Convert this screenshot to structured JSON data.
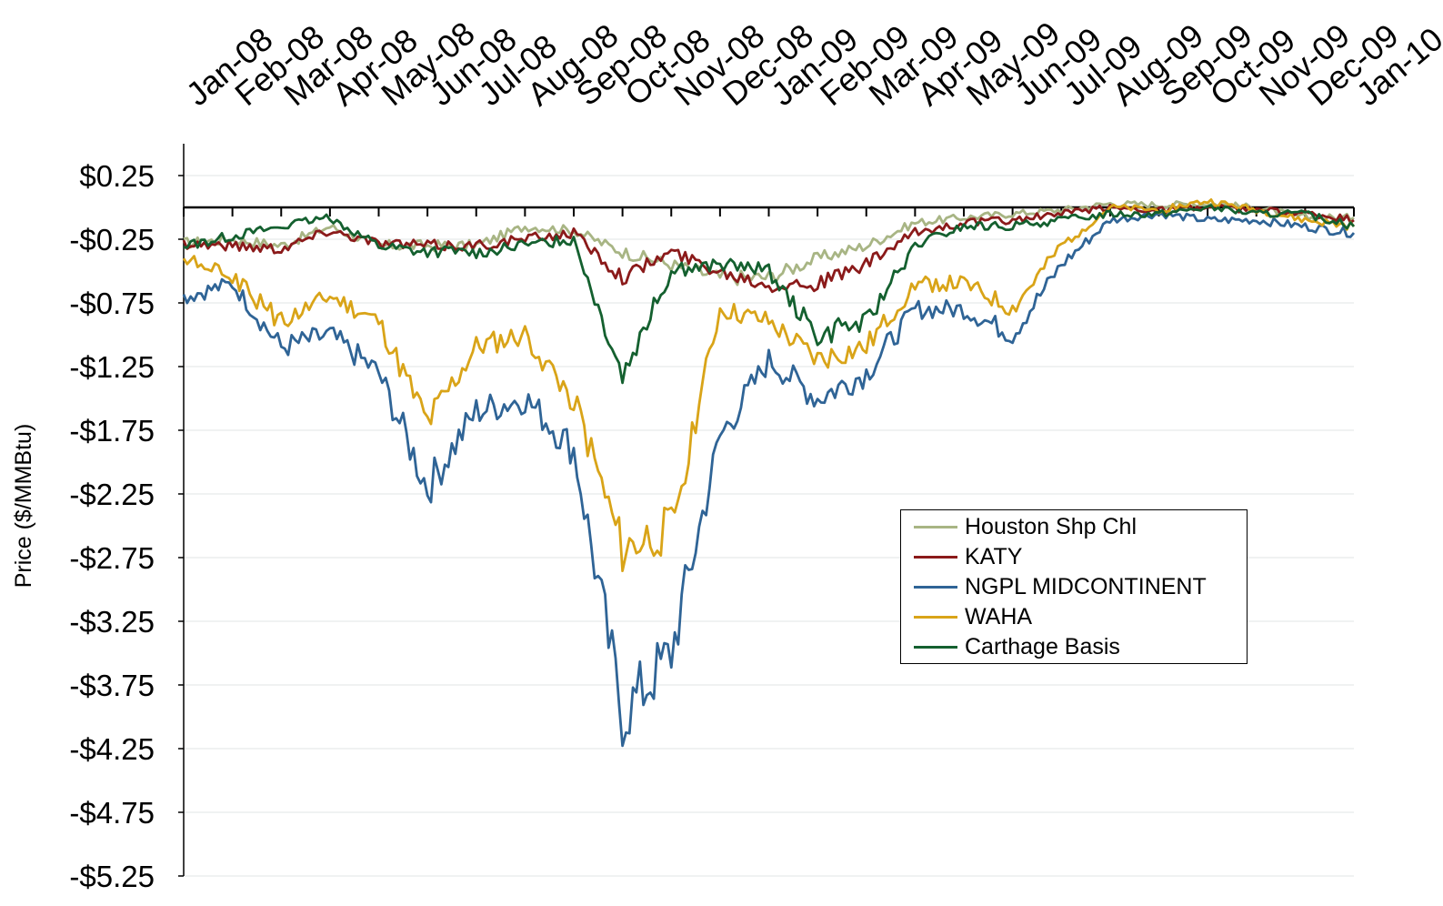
{
  "chart_data": {
    "type": "line",
    "title": "",
    "xlabel": "",
    "ylabel": "Price ($/MMBtu)",
    "ylim": [
      -5.25,
      0.5
    ],
    "y_ticks": [
      "$0.25",
      "-$0.25",
      "-$0.75",
      "-$1.25",
      "-$1.75",
      "-$2.25",
      "-$2.75",
      "-$3.25",
      "-$3.75",
      "-$4.25",
      "-$4.75",
      "-$5.25"
    ],
    "y_tick_values": [
      0.25,
      -0.25,
      -0.75,
      -1.25,
      -1.75,
      -2.25,
      -2.75,
      -3.25,
      -3.75,
      -4.25,
      -4.75,
      -5.25
    ],
    "x_ticks": [
      "Jan-08",
      "Feb-08",
      "Mar-08",
      "Apr-08",
      "May-08",
      "Jun-08",
      "Jul-08",
      "Aug-08",
      "Sep-08",
      "Oct-08",
      "Nov-08",
      "Dec-08",
      "Jan-09",
      "Feb-09",
      "Mar-09",
      "Apr-09",
      "May-09",
      "Jun-09",
      "Jul-09",
      "Aug-09",
      "Sep-09",
      "Oct-09",
      "Nov-09",
      "Dec-09",
      "Jan-10"
    ],
    "x": [
      "Jan-08",
      "Feb-08",
      "Mar-08",
      "Apr-08",
      "May-08",
      "Jun-08",
      "Jul-08",
      "Aug-08",
      "Sep-08",
      "Oct-08",
      "Nov-08",
      "Dec-08",
      "Jan-09",
      "Feb-09",
      "Mar-09",
      "Apr-09",
      "May-09",
      "Jun-09",
      "Jul-09",
      "Aug-09",
      "Sep-09",
      "Oct-09",
      "Nov-09",
      "Dec-09",
      "Jan-10"
    ],
    "zero_line": true,
    "grid": true,
    "legend_position": "center-right",
    "series": [
      {
        "name": "Houston Shp Chl",
        "color": "#a8b584",
        "values": [
          -0.28,
          -0.25,
          -0.3,
          -0.15,
          -0.3,
          -0.3,
          -0.3,
          -0.15,
          -0.18,
          -0.35,
          -0.45,
          -0.55,
          -0.55,
          -0.4,
          -0.3,
          -0.12,
          -0.08,
          -0.05,
          -0.02,
          0.03,
          0.02,
          0.03,
          0.0,
          -0.08,
          -0.08
        ]
      },
      {
        "name": "KATY",
        "color": "#8b1a1a",
        "values": [
          -0.28,
          -0.3,
          -0.32,
          -0.18,
          -0.28,
          -0.3,
          -0.3,
          -0.25,
          -0.2,
          -0.55,
          -0.35,
          -0.5,
          -0.6,
          -0.6,
          -0.45,
          -0.2,
          -0.12,
          -0.1,
          -0.05,
          0.0,
          -0.02,
          0.0,
          -0.02,
          -0.05,
          -0.1
        ]
      },
      {
        "name": "NGPL MIDCONTINENT",
        "color": "#2f6496",
        "values": [
          -0.7,
          -0.6,
          -1.1,
          -1.0,
          -1.3,
          -2.2,
          -1.6,
          -1.5,
          -1.9,
          -4.0,
          -3.5,
          -1.8,
          -1.2,
          -1.5,
          -1.3,
          -0.8,
          -0.8,
          -1.0,
          -0.45,
          -0.1,
          -0.05,
          -0.1,
          -0.1,
          -0.15,
          -0.2
        ]
      },
      {
        "name": "WAHA",
        "color": "#d9a418",
        "values": [
          -0.4,
          -0.55,
          -0.9,
          -0.7,
          -0.9,
          -1.7,
          -1.1,
          -1.0,
          -1.5,
          -2.7,
          -2.5,
          -0.8,
          -0.9,
          -1.2,
          -1.1,
          -0.6,
          -0.6,
          -0.8,
          -0.3,
          0.0,
          -0.02,
          0.05,
          -0.02,
          -0.1,
          -0.15
        ]
      },
      {
        "name": "Carthage Basis",
        "color": "#14602f",
        "values": [
          -0.3,
          -0.22,
          -0.15,
          -0.08,
          -0.3,
          -0.35,
          -0.35,
          -0.3,
          -0.25,
          -1.3,
          -0.5,
          -0.45,
          -0.5,
          -1.0,
          -0.9,
          -0.3,
          -0.15,
          -0.15,
          -0.1,
          -0.05,
          -0.05,
          0.0,
          -0.05,
          -0.05,
          -0.15
        ]
      }
    ]
  }
}
